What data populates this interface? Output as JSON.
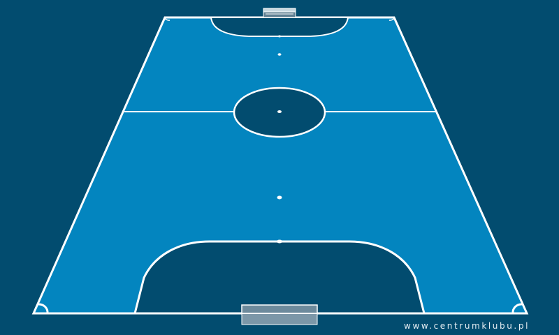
{
  "scene": {
    "type": "futsal-court-perspective",
    "colors": {
      "background": "#024c6f",
      "court": "#0385bf",
      "lines": "#ffffff",
      "penalty_area": "#024c6f",
      "goal_net": "#b7c9d4"
    },
    "elements": [
      "court-surface",
      "touchlines",
      "halfway-line",
      "center-circle",
      "center-spot",
      "far-penalty-area",
      "near-penalty-area",
      "far-penalty-spot",
      "near-penalty-spot",
      "corner-arcs",
      "far-goal",
      "near-goal"
    ]
  },
  "watermark": {
    "text": "www.centrumklubu.pl"
  }
}
